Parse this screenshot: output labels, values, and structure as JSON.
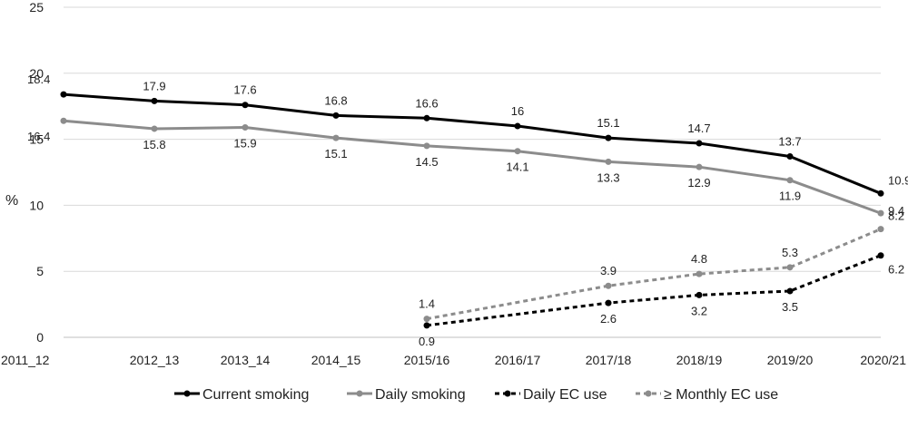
{
  "chart_data": {
    "type": "line",
    "ylabel": "%",
    "ylim": [
      0,
      25
    ],
    "yticks": [
      0,
      5,
      10,
      15,
      20,
      25
    ],
    "grid": "horizontal",
    "legend": "bottom",
    "categories": [
      "2011_12",
      "2012_13",
      "2013_14",
      "2014_15",
      "2015/16",
      "2016/17",
      "2017/18",
      "2018/19",
      "2019/20",
      "2020/21"
    ],
    "series": [
      {
        "name": "Current smoking",
        "color": "#000000",
        "dashed": false,
        "values": [
          18.4,
          17.9,
          17.6,
          16.8,
          16.6,
          16,
          15.1,
          14.7,
          13.7,
          10.9
        ],
        "labels": [
          "18.4",
          "17.9",
          "17.6",
          "16.8",
          "16.6",
          "16",
          "15.1",
          "14.7",
          "13.7",
          "10.9"
        ],
        "label_pos": "above"
      },
      {
        "name": "Daily smoking",
        "color": "#8c8c8c",
        "dashed": false,
        "values": [
          16.4,
          15.8,
          15.9,
          15.1,
          14.5,
          14.1,
          13.3,
          12.9,
          11.9,
          9.4
        ],
        "labels": [
          "16.4",
          "15.8",
          "15.9",
          "15.1",
          "14.5",
          "14.1",
          "13.3",
          "12.9",
          "11.9",
          "9.4"
        ],
        "label_pos": "below"
      },
      {
        "name": "Daily EC use",
        "color": "#000000",
        "dashed": true,
        "values": [
          null,
          null,
          null,
          null,
          0.9,
          null,
          2.6,
          3.2,
          3.5,
          6.2
        ],
        "labels": [
          null,
          null,
          null,
          null,
          "0.9",
          null,
          "2.6",
          "3.2",
          "3.5",
          "6.2"
        ],
        "label_pos": "below"
      },
      {
        "name": "≥ Monthly EC use",
        "color": "#8c8c8c",
        "dashed": true,
        "values": [
          null,
          null,
          null,
          null,
          1.4,
          null,
          3.9,
          4.8,
          5.3,
          8.2
        ],
        "labels": [
          null,
          null,
          null,
          null,
          "1.4",
          null,
          "3.9",
          "4.8",
          "5.3",
          "8.2"
        ],
        "label_pos": "above"
      }
    ]
  }
}
